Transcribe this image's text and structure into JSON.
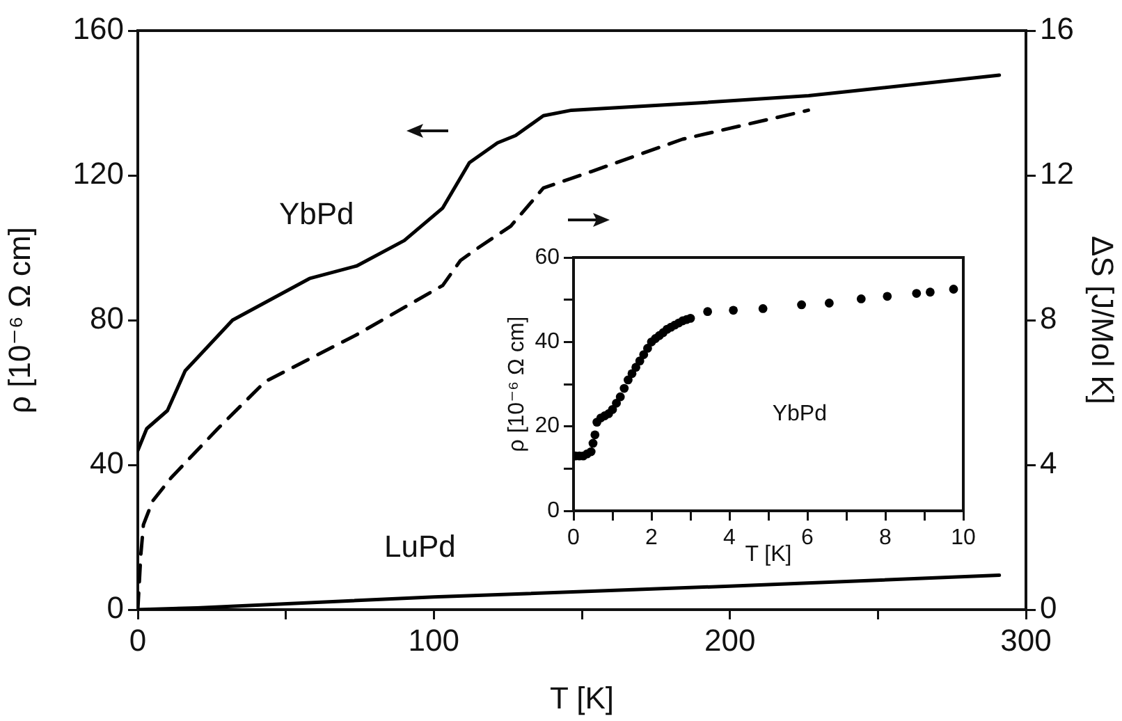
{
  "chart_data": [
    {
      "type": "line",
      "xlabel": "T [K]",
      "ylabel": "ρ [10⁻⁶ Ω cm]",
      "y2label": "ΔS [J/Mol K]",
      "xlim": [
        0,
        300
      ],
      "xticks": [
        0,
        {
          "value": 50,
          "label": null
        },
        100,
        {
          "value": 150,
          "label": null
        },
        200,
        {
          "value": 250,
          "label": null
        },
        300
      ],
      "ylim": [
        0,
        160
      ],
      "yticks": [
        0,
        40,
        80,
        120,
        160
      ],
      "y2lim": [
        0,
        16
      ],
      "y2ticks": [
        0,
        4,
        8,
        12,
        16
      ],
      "marker": "none",
      "series": [
        {
          "name": "YbPd",
          "color": "#000000",
          "line_style": "solid",
          "x": [
            0,
            3,
            10,
            16,
            32,
            58,
            74,
            90,
            103,
            112,
            121.5,
            127.6,
            137,
            146.5,
            189,
            226.6,
            291
          ],
          "values": [
            44,
            50,
            55,
            66,
            80,
            91.5,
            95,
            102,
            111,
            123.5,
            129,
            131,
            136.5,
            138,
            140,
            142,
            147.7
          ]
        },
        {
          "color": "#000000",
          "line_style": "dashed",
          "axis": "y2",
          "x": [
            0,
            1,
            1.9,
            5,
            11.3,
            27,
            43,
            74,
            103,
            109,
            115,
            126,
            137,
            153,
            184,
            226.5
          ],
          "values": [
            0,
            1.5,
            2.35,
            3.0,
            3.65,
            5.0,
            6.3,
            7.6,
            8.96,
            9.65,
            10.0,
            10.6,
            11.65,
            12.1,
            13.0,
            13.8
          ]
        },
        {
          "name": "LuPd",
          "color": "#000000",
          "line_style": "solid",
          "x": [
            0,
            20,
            100,
            200,
            291
          ],
          "values": [
            0,
            0.5,
            3.5,
            6.5,
            9.5
          ]
        }
      ]
    },
    {
      "type": "scatter",
      "xlabel": "T [K]",
      "ylabel": "ρ [10⁻⁶ Ω cm]",
      "xlim": [
        0,
        10
      ],
      "xticks": [
        0,
        {
          "value": 1,
          "label": null
        },
        2,
        {
          "value": 3,
          "label": null
        },
        4,
        {
          "value": 5,
          "label": null
        },
        6,
        {
          "value": 7,
          "label": null
        },
        8,
        {
          "value": 9,
          "label": null
        },
        10
      ],
      "ylim": [
        0,
        60
      ],
      "yticks": [
        0,
        {
          "value": 10,
          "label": null
        },
        20,
        {
          "value": 30,
          "label": null
        },
        40,
        {
          "value": 50,
          "label": null
        },
        60
      ],
      "marker": "circle",
      "annotations": [
        "YbPd"
      ],
      "series": [
        {
          "color": "#000000",
          "x": [
            0.05,
            0.15,
            0.25,
            0.35,
            0.45,
            0.5,
            0.55,
            0.6,
            0.7,
            0.8,
            0.9,
            1.0,
            1.1,
            1.2,
            1.3,
            1.4,
            1.5,
            1.6,
            1.7,
            1.8,
            1.9,
            2.0,
            2.1,
            2.2,
            2.3,
            2.4,
            2.5,
            2.6,
            2.7,
            2.8,
            2.9,
            3.0,
            3.44,
            4.1,
            4.86,
            5.85,
            6.56,
            7.38,
            8.05,
            8.8,
            9.15,
            9.75
          ],
          "values": [
            13,
            13,
            13,
            13.5,
            14,
            16,
            18,
            21,
            22,
            22.5,
            23,
            24,
            25.5,
            27,
            29,
            31,
            32.5,
            34,
            35.5,
            37,
            38.5,
            40,
            40.8,
            41.5,
            42.2,
            43,
            43.5,
            44,
            44.5,
            45,
            45.3,
            45.6,
            47.2,
            47.5,
            47.9,
            48.8,
            49.2,
            50.2,
            50.8,
            51.5,
            51.8,
            52.5
          ]
        }
      ]
    }
  ]
}
